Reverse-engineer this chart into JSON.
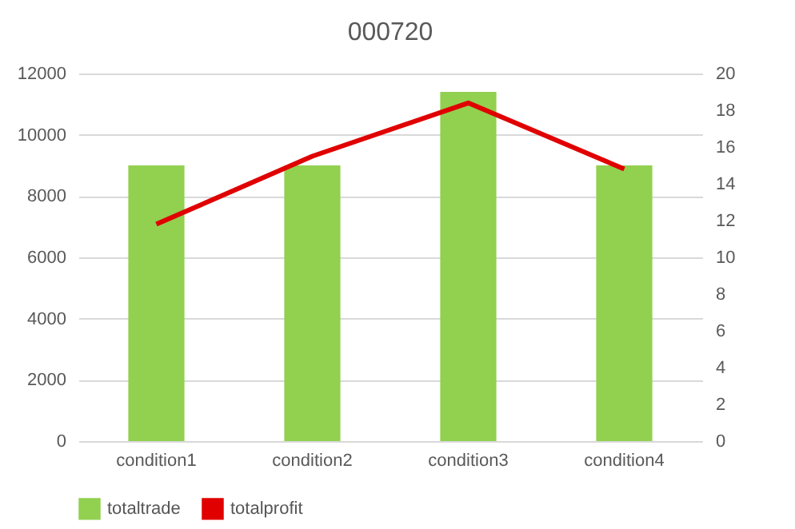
{
  "chart_data": {
    "type": "bar",
    "title": "000720",
    "categories": [
      "condition1",
      "condition2",
      "condition3",
      "condition4"
    ],
    "series": [
      {
        "name": "totaltrade",
        "color": "#92d050",
        "values": [
          9000,
          9000,
          11400,
          9000
        ]
      },
      {
        "name": "totalprofit",
        "type": "line",
        "axis": "y2",
        "color": "#e00000",
        "values": [
          11.8,
          15.5,
          18.4,
          14.8
        ]
      }
    ],
    "ylim": [
      0,
      12000
    ],
    "yticks": [
      0,
      2000,
      4000,
      6000,
      8000,
      10000,
      12000
    ],
    "y2lim": [
      0,
      20
    ],
    "y2ticks": [
      0,
      2,
      4,
      6,
      8,
      10,
      12,
      14,
      16,
      18,
      20
    ],
    "grid": "y",
    "legend": "bottom",
    "marker": "none",
    "line_style": "solid"
  }
}
